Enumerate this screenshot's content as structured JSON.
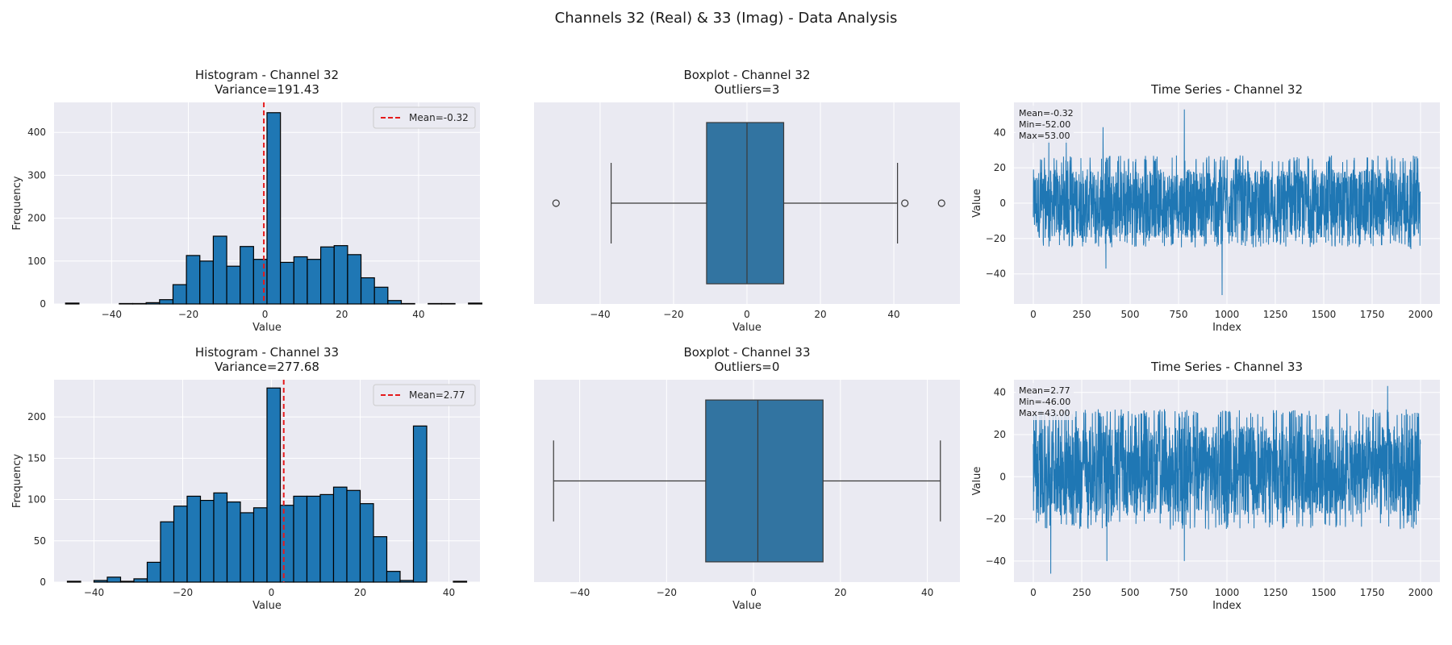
{
  "figure_title": "Channels 32 (Real) & 33 (Imag) - Data Analysis",
  "colors": {
    "panel_bg": "#eaeaf2",
    "grid": "#ffffff",
    "hist_bar": "#1f77b4",
    "box_fill": "#3274a1",
    "mean_line": "#e41a1c",
    "line": "#1f77b4"
  },
  "chart_data": [
    {
      "id": "hist32",
      "type": "bar",
      "title": "Histogram - Channel 32",
      "subtitle": "Variance=191.43",
      "xlabel": "Value",
      "ylabel": "Frequency",
      "xlim": [
        -55,
        56
      ],
      "ylim": [
        0,
        470
      ],
      "xticks": [
        -40,
        -20,
        0,
        20,
        40
      ],
      "yticks": [
        0,
        100,
        200,
        300,
        400
      ],
      "bin_start": -52,
      "bin_width": 3.5,
      "values": [
        2,
        0,
        0,
        0,
        1,
        1,
        3,
        10,
        45,
        113,
        100,
        158,
        88,
        134,
        104,
        446,
        97,
        110,
        104,
        133,
        136,
        115,
        61,
        39,
        8,
        1,
        0,
        1,
        1,
        0,
        2
      ],
      "mean": -0.32,
      "legend": "Mean=-0.32",
      "legend_position": "top-right"
    },
    {
      "id": "box32",
      "type": "boxplot",
      "title": "Boxplot - Channel 32",
      "subtitle": "Outliers=3",
      "xlabel": "Value",
      "xlim": [
        -58,
        58
      ],
      "xticks": [
        -40,
        -20,
        0,
        20,
        40
      ],
      "whisker_low": -37,
      "q1": -11,
      "median": 0,
      "q3": 10,
      "whisker_high": 41,
      "outliers": [
        -52,
        43,
        53
      ]
    },
    {
      "id": "ts32",
      "type": "line",
      "title": "Time Series - Channel 32",
      "xlabel": "Index",
      "ylabel": "Value",
      "xlim": [
        -100,
        2100
      ],
      "ylim": [
        -57,
        57
      ],
      "xticks": [
        0,
        250,
        500,
        750,
        1000,
        1250,
        1500,
        1750,
        2000
      ],
      "yticks": [
        -40,
        -20,
        0,
        20,
        40
      ],
      "n_points": 2000,
      "mean": -0.32,
      "min": -52,
      "max": 53,
      "typical_low": -25,
      "typical_high": 27,
      "spikes": [
        [
          80,
          35
        ],
        [
          170,
          36
        ],
        [
          360,
          43
        ],
        [
          375,
          -37
        ],
        [
          780,
          53
        ],
        [
          975,
          -52
        ],
        [
          1950,
          -26
        ]
      ],
      "stats_lines": [
        "Mean=-0.32",
        "Min=-52.00",
        "Max=53.00"
      ]
    },
    {
      "id": "hist33",
      "type": "bar",
      "title": "Histogram - Channel 33",
      "subtitle": "Variance=277.68",
      "xlabel": "Value",
      "ylabel": "Frequency",
      "xlim": [
        -49,
        47
      ],
      "ylim": [
        0,
        245
      ],
      "xticks": [
        -40,
        -20,
        0,
        20,
        40
      ],
      "yticks": [
        0,
        50,
        100,
        150,
        200
      ],
      "bin_start": -46,
      "bin_width": 3,
      "values": [
        1,
        0,
        2,
        6,
        1,
        4,
        24,
        73,
        92,
        104,
        99,
        108,
        97,
        84,
        90,
        235,
        93,
        104,
        104,
        106,
        115,
        111,
        95,
        55,
        13,
        2,
        189,
        0,
        0,
        1
      ],
      "mean": 2.77,
      "legend": "Mean=2.77",
      "legend_position": "top-right"
    },
    {
      "id": "box33",
      "type": "boxplot",
      "title": "Boxplot - Channel 33",
      "subtitle": "Outliers=0",
      "xlabel": "Value",
      "xlim": [
        -50.5,
        47.5
      ],
      "xticks": [
        -40,
        -20,
        0,
        20,
        40
      ],
      "whisker_low": -46,
      "q1": -11,
      "median": 1,
      "q3": 16,
      "whisker_high": 43,
      "outliers": []
    },
    {
      "id": "ts33",
      "type": "line",
      "title": "Time Series - Channel 33",
      "xlabel": "Index",
      "ylabel": "Value",
      "xlim": [
        -100,
        2100
      ],
      "ylim": [
        -50,
        46
      ],
      "xticks": [
        0,
        250,
        500,
        750,
        1000,
        1250,
        1500,
        1750,
        2000
      ],
      "yticks": [
        -40,
        -20,
        0,
        20,
        40
      ],
      "n_points": 2000,
      "mean": 2.77,
      "min": -46,
      "max": 43,
      "typical_low": -25,
      "typical_high": 32,
      "spikes": [
        [
          90,
          -46
        ],
        [
          170,
          33
        ],
        [
          380,
          -40
        ],
        [
          780,
          -40
        ],
        [
          1830,
          43
        ]
      ],
      "stats_lines": [
        "Mean=2.77",
        "Min=-46.00",
        "Max=43.00"
      ]
    }
  ]
}
